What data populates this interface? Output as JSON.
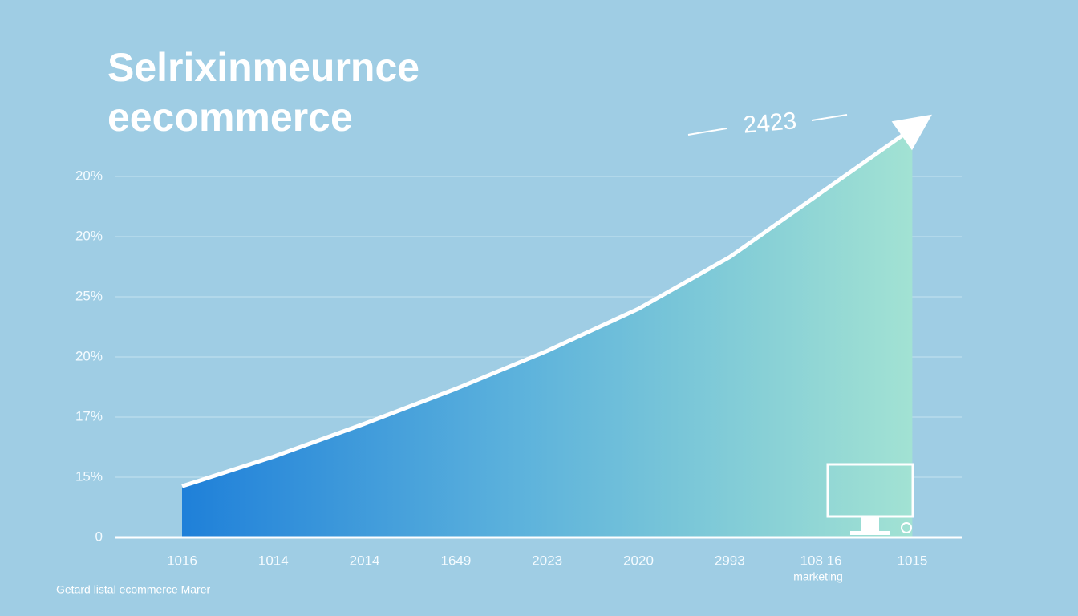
{
  "chart_data": {
    "type": "area",
    "title": "Selrixinmeurnce",
    "subtitle": "eecommerce",
    "annotation": "2423",
    "x_sublabel": "marketing",
    "footer": "Getard listal ecommerce Marer",
    "categories": [
      "1016",
      "1014",
      "2014",
      "1649",
      "2023",
      "2020",
      "2993",
      "108 16",
      "1015"
    ],
    "values": [
      0.85,
      1.34,
      1.89,
      2.47,
      3.1,
      3.8,
      4.66,
      5.73,
      6.8
    ],
    "ylim": [
      0,
      6
    ],
    "yticks": [
      {
        "value": 0,
        "label": "0"
      },
      {
        "value": 1,
        "label": "15%"
      },
      {
        "value": 2,
        "label": "17%"
      },
      {
        "value": 3,
        "label": "20%"
      },
      {
        "value": 4,
        "label": "25%"
      },
      {
        "value": 5,
        "label": "20%"
      },
      {
        "value": 6,
        "label": "20%"
      }
    ],
    "grid": true
  }
}
